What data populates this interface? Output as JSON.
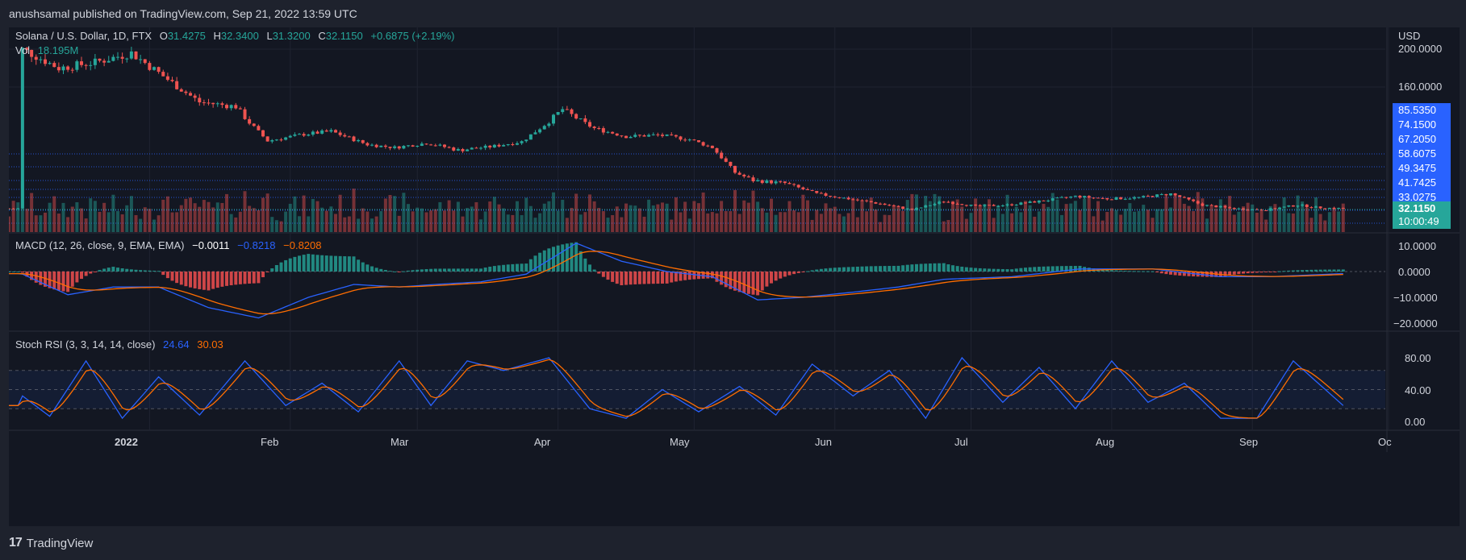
{
  "header": {
    "text": "anushsamal published on TradingView.com, Sep 21, 2022 13:59 UTC"
  },
  "footer": {
    "brand": "TradingView"
  },
  "colors": {
    "up": "#26a69a",
    "down": "#ef5350",
    "macd": "#2962ff",
    "signal": "#ff6d00",
    "label": "#2962ff"
  },
  "main_legend": {
    "symbol": "Solana / U.S. Dollar, 1D, FTX",
    "o_label": "O",
    "o_value": "31.4275",
    "h_label": "H",
    "h_value": "32.3400",
    "l_label": "L",
    "l_value": "31.3200",
    "c_label": "C",
    "c_value": "32.1150",
    "change": "+0.6875 (+2.19%)",
    "vol_label": "Vol",
    "vol_value": "18.195M"
  },
  "macd_legend": {
    "label": "MACD (12, 26, close, 9, EMA, EMA)",
    "hist": "−0.0011",
    "macd": "−0.8218",
    "signal": "−0.8208"
  },
  "stoch_legend": {
    "label": "Stoch RSI (3, 3, 14, 14, close)",
    "k": "24.64",
    "d": "30.03"
  },
  "currency": "USD",
  "price_axis": [
    "200.0000",
    "160.0000"
  ],
  "level_labels": [
    "85.5350",
    "74.1500",
    "67.2050",
    "58.6075",
    "49.3475",
    "41.7425",
    "33.0275"
  ],
  "last_price": "32.1150",
  "countdown": "10:00:49",
  "macd_axis": [
    "10.0000",
    "0.0000",
    "−10.0000",
    "−20.0000"
  ],
  "stoch_axis": [
    "80.00",
    "40.00",
    "0.00"
  ],
  "time_axis": [
    "2022",
    "Feb",
    "Mar",
    "Apr",
    "May",
    "Jun",
    "Jul",
    "Aug",
    "Sep",
    "Oc"
  ],
  "chart_data": {
    "type": "candlestick",
    "symbol": "Solana / U.S. Dollar",
    "interval": "1D",
    "exchange": "FTX",
    "last_close": 32.115,
    "close_series": [
      [
        "2021-12-04",
        200
      ],
      [
        "2021-12-12",
        180
      ],
      [
        "2021-12-20",
        186
      ],
      [
        "2021-12-28",
        196
      ],
      [
        "2022-01-05",
        168
      ],
      [
        "2022-01-12",
        143
      ],
      [
        "2022-01-20",
        138
      ],
      [
        "2022-01-27",
        95
      ],
      [
        "2022-02-04",
        104
      ],
      [
        "2022-02-10",
        108
      ],
      [
        "2022-02-18",
        90
      ],
      [
        "2022-02-24",
        86
      ],
      [
        "2022-03-03",
        92
      ],
      [
        "2022-03-10",
        83
      ],
      [
        "2022-03-17",
        87
      ],
      [
        "2022-03-24",
        94
      ],
      [
        "2022-04-02",
        135
      ],
      [
        "2022-04-09",
        112
      ],
      [
        "2022-04-16",
        101
      ],
      [
        "2022-04-23",
        103
      ],
      [
        "2022-04-30",
        97
      ],
      [
        "2022-05-05",
        86
      ],
      [
        "2022-05-10",
        60
      ],
      [
        "2022-05-14",
        54
      ],
      [
        "2022-05-21",
        52
      ],
      [
        "2022-05-28",
        44
      ],
      [
        "2022-06-04",
        40
      ],
      [
        "2022-06-11",
        36
      ],
      [
        "2022-06-18",
        31
      ],
      [
        "2022-06-25",
        38
      ],
      [
        "2022-07-02",
        34
      ],
      [
        "2022-07-09",
        35
      ],
      [
        "2022-07-16",
        38
      ],
      [
        "2022-07-24",
        42
      ],
      [
        "2022-07-31",
        40
      ],
      [
        "2022-08-07",
        41
      ],
      [
        "2022-08-14",
        44
      ],
      [
        "2022-08-21",
        35
      ],
      [
        "2022-08-28",
        32
      ],
      [
        "2022-09-04",
        31
      ],
      [
        "2022-09-11",
        35
      ],
      [
        "2022-09-15",
        33
      ],
      [
        "2022-09-21",
        32.1
      ]
    ],
    "levels": [
      85.535,
      74.15,
      67.205,
      58.6075,
      49.3475,
      41.7425,
      33.0275
    ],
    "y_ticks": [
      200,
      160
    ],
    "macd": {
      "params": "12, 26, close, 9",
      "last": {
        "histogram": -0.0011,
        "macd": -0.8218,
        "signal": -0.8208
      },
      "y_ticks": [
        10,
        0,
        -10,
        -20
      ],
      "series": [
        [
          "2021-12-04",
          -1
        ],
        [
          "2021-12-14",
          -9
        ],
        [
          "2021-12-24",
          -6
        ],
        [
          "2022-01-03",
          -6
        ],
        [
          "2022-01-14",
          -14
        ],
        [
          "2022-01-25",
          -18
        ],
        [
          "2022-02-05",
          -10
        ],
        [
          "2022-02-15",
          -5
        ],
        [
          "2022-02-25",
          -6
        ],
        [
          "2022-03-05",
          -5
        ],
        [
          "2022-03-15",
          -4
        ],
        [
          "2022-03-25",
          -1
        ],
        [
          "2022-04-05",
          11
        ],
        [
          "2022-04-15",
          4
        ],
        [
          "2022-04-25",
          0
        ],
        [
          "2022-05-05",
          -2
        ],
        [
          "2022-05-15",
          -11
        ],
        [
          "2022-05-25",
          -10
        ],
        [
          "2022-06-05",
          -8
        ],
        [
          "2022-06-15",
          -6
        ],
        [
          "2022-06-25",
          -3
        ],
        [
          "2022-07-10",
          -2
        ],
        [
          "2022-07-25",
          1
        ],
        [
          "2022-08-10",
          1
        ],
        [
          "2022-08-25",
          -2
        ],
        [
          "2022-09-05",
          -2
        ],
        [
          "2022-09-21",
          -0.8
        ]
      ]
    },
    "stoch_rsi": {
      "params": "3, 3, 14, 14, close",
      "last": {
        "k": 24.64,
        "d": 30.03
      },
      "bands": [
        80,
        20
      ],
      "y_ticks": [
        80,
        40,
        0
      ],
      "k_series": [
        [
          "2021-12-04",
          40
        ],
        [
          "2021-12-10",
          8
        ],
        [
          "2021-12-18",
          95
        ],
        [
          "2021-12-26",
          5
        ],
        [
          "2022-01-03",
          70
        ],
        [
          "2022-01-12",
          10
        ],
        [
          "2022-01-22",
          95
        ],
        [
          "2022-01-31",
          25
        ],
        [
          "2022-02-08",
          60
        ],
        [
          "2022-02-16",
          15
        ],
        [
          "2022-02-25",
          95
        ],
        [
          "2022-03-04",
          25
        ],
        [
          "2022-03-12",
          95
        ],
        [
          "2022-03-20",
          80
        ],
        [
          "2022-03-30",
          100
        ],
        [
          "2022-04-08",
          20
        ],
        [
          "2022-04-16",
          5
        ],
        [
          "2022-04-24",
          50
        ],
        [
          "2022-05-02",
          15
        ],
        [
          "2022-05-11",
          55
        ],
        [
          "2022-05-19",
          10
        ],
        [
          "2022-05-27",
          90
        ],
        [
          "2022-06-05",
          40
        ],
        [
          "2022-06-13",
          80
        ],
        [
          "2022-06-21",
          5
        ],
        [
          "2022-06-29",
          100
        ],
        [
          "2022-07-08",
          30
        ],
        [
          "2022-07-16",
          85
        ],
        [
          "2022-07-24",
          20
        ],
        [
          "2022-08-01",
          95
        ],
        [
          "2022-08-09",
          30
        ],
        [
          "2022-08-17",
          60
        ],
        [
          "2022-08-25",
          5
        ],
        [
          "2022-09-02",
          5
        ],
        [
          "2022-09-10",
          95
        ],
        [
          "2022-09-21",
          25
        ]
      ]
    }
  }
}
